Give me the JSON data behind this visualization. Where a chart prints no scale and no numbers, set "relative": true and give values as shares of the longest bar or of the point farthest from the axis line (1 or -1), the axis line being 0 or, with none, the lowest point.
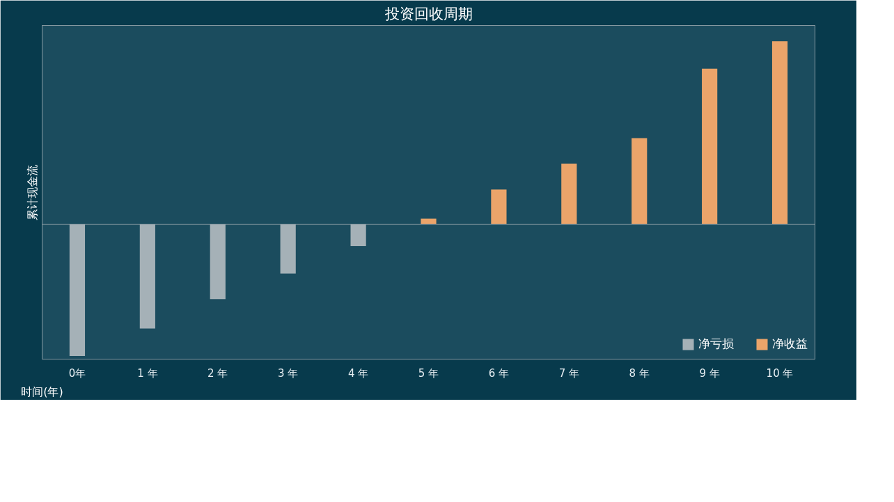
{
  "chart_data": {
    "type": "bar",
    "title": "投资回收周期",
    "xlabel": "时间(年)",
    "ylabel": "累计现金流",
    "categories": [
      "0年",
      "1 年",
      "2 年",
      "3 年",
      "4 年",
      "5 年",
      "6 年",
      "7 年",
      "8 年",
      "9 年",
      "10 年"
    ],
    "relative": true,
    "stacked": true,
    "legend": "bottom right",
    "grid": false,
    "series": [
      {
        "name": "净亏损",
        "color": "#a5b1b7",
        "values": [
          -0.72,
          -0.57,
          -0.41,
          -0.27,
          -0.12,
          null,
          null,
          null,
          null,
          null,
          null
        ]
      },
      {
        "name": "净收益",
        "color": "#eba46a",
        "values": [
          null,
          null,
          null,
          null,
          null,
          0.03,
          0.19,
          0.33,
          0.47,
          0.85,
          1
        ]
      }
    ]
  }
}
